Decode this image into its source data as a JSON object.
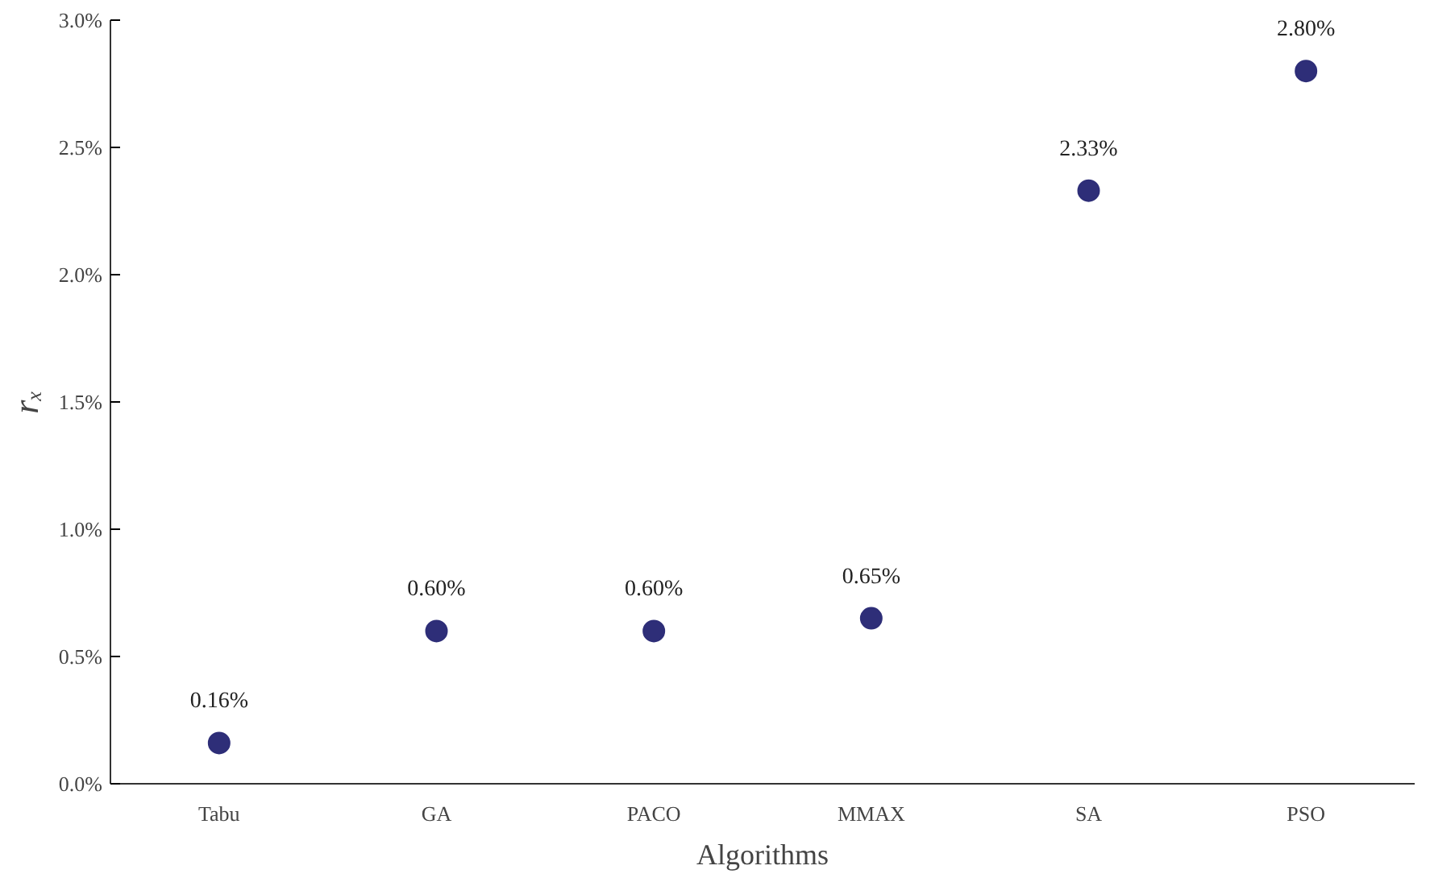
{
  "chart_data": {
    "type": "scatter",
    "xlabel": "Algorithms",
    "ylabel": "rₓ",
    "categories": [
      "Tabu",
      "GA",
      "PACO",
      "MMAX",
      "SA",
      "PSO"
    ],
    "values": [
      0.16,
      0.6,
      0.6,
      0.65,
      2.33,
      2.8
    ],
    "value_labels": [
      "0.16%",
      "0.60%",
      "0.60%",
      "0.65%",
      "2.33%",
      "2.80%"
    ],
    "color": "#2e2e78",
    "marker": "circle",
    "ylim": [
      0,
      3
    ],
    "yticks": [
      {
        "value": 0,
        "label": "0.0%"
      },
      {
        "value": 0.5,
        "label": "0.5%"
      },
      {
        "value": 1,
        "label": "1.0%"
      },
      {
        "value": 1.5,
        "label": "1.5%"
      },
      {
        "value": 2,
        "label": "2.0%"
      },
      {
        "value": 2.5,
        "label": "2.5%"
      },
      {
        "value": 3,
        "label": "3.0%"
      }
    ],
    "grid": false
  }
}
